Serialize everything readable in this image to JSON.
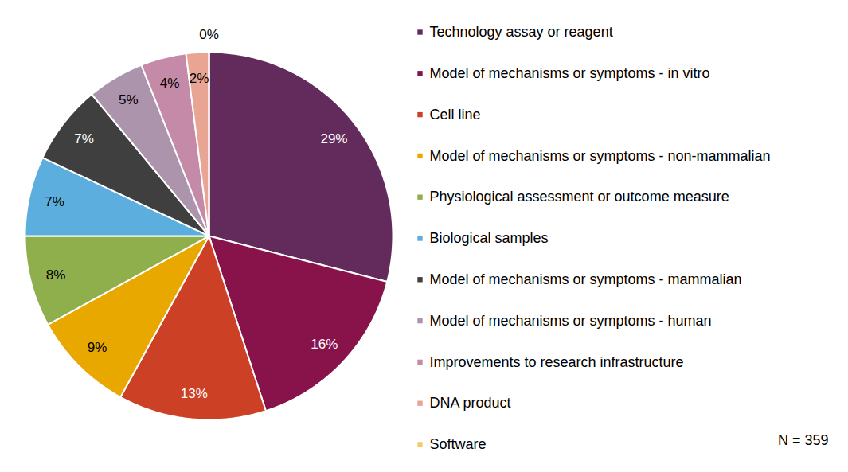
{
  "chart_data": {
    "type": "pie",
    "categories": [
      "Technology assay or reagent",
      "Model of mechanisms or symptoms - in vitro",
      "Cell line",
      "Model of mechanisms or symptoms - non-mammalian",
      "Physiological assessment or outcome measure",
      "Biological samples",
      "Model of mechanisms or symptoms - mammalian",
      "Model of mechanisms or symptoms - human",
      "Improvements to research infrastructure",
      "DNA product",
      "Software"
    ],
    "values": [
      29,
      16,
      13,
      9,
      8,
      7,
      7,
      5,
      4,
      2,
      0
    ],
    "value_labels": [
      "29%",
      "16%",
      "13%",
      "9%",
      "8%",
      "7%",
      "7%",
      "5%",
      "4%",
      "2%",
      "0%"
    ],
    "colors": [
      "#622B5C",
      "#87134A",
      "#CC4125",
      "#E8A800",
      "#8FAF4D",
      "#5BAEDD",
      "#3F3F3F",
      "#AC94AC",
      "#C48AA8",
      "#E8A594",
      "#F2CC6C"
    ],
    "data_labels": true,
    "legend": "right",
    "annotation": "N = 359"
  }
}
